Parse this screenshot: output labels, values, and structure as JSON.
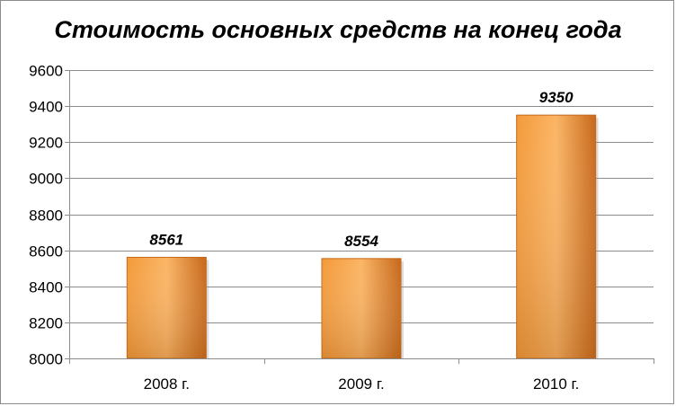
{
  "chart_data": {
    "type": "bar",
    "title": "Стоимость основных средств на конец года",
    "categories": [
      "2008 г.",
      "2009 г.",
      "2010 г."
    ],
    "values": [
      8561,
      8554,
      9350
    ],
    "data_labels": [
      "8561",
      "8554",
      "9350"
    ],
    "ylim": [
      8000,
      9600
    ],
    "yticks": [
      8000,
      8200,
      8400,
      8600,
      8800,
      9000,
      9200,
      9400,
      9600
    ],
    "grid": true,
    "legend": "none",
    "xlabel": "",
    "ylabel": "",
    "colors": {
      "bar_light": "#fbb565",
      "bar_mid": "#f39a3a",
      "bar_dark": "#c7681a",
      "grid": "#8c8c8c",
      "axis": "#8c8c8c"
    }
  }
}
